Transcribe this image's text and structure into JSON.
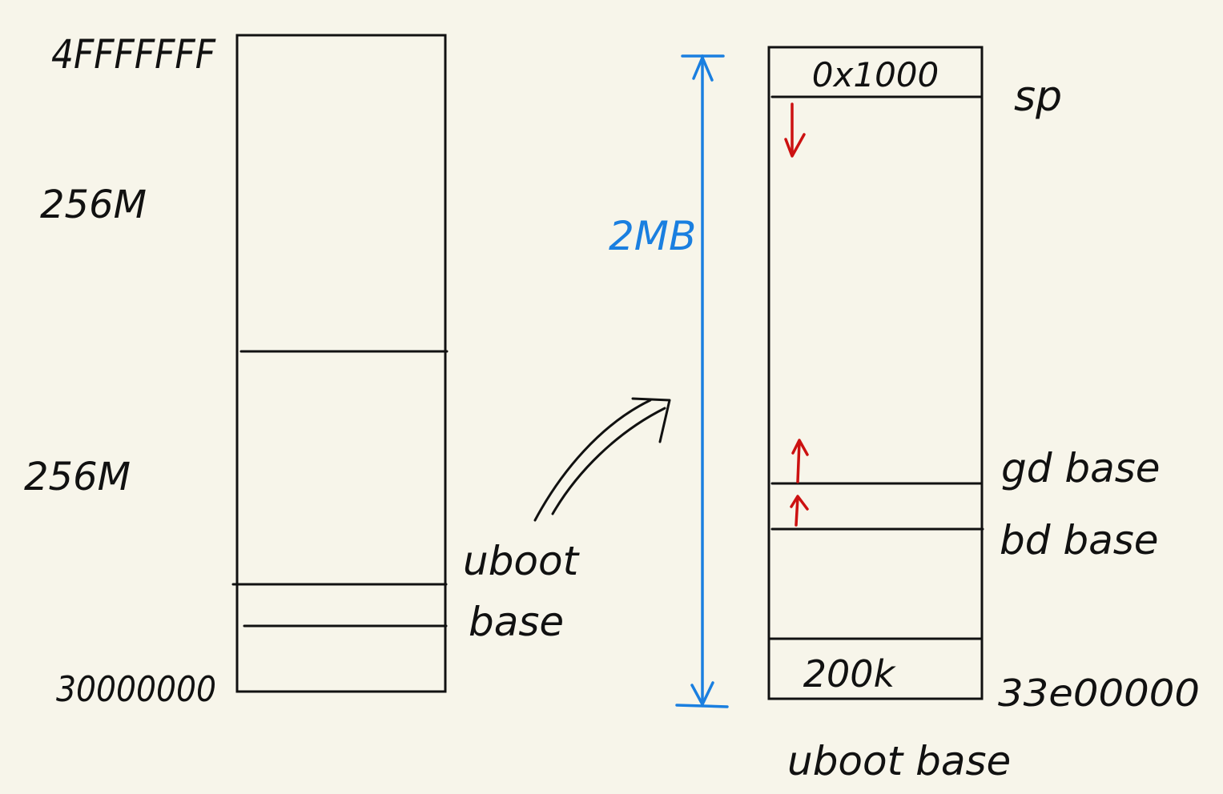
{
  "colors": {
    "background": "#f7f5ea",
    "ink": "#111111",
    "accent_blue": "#1a7fe0",
    "accent_red": "#cc1111"
  },
  "left_memory": {
    "top_address": "4FFFFFFF",
    "bottom_address": "30000000",
    "upper_region_size": "256M",
    "lower_region_size": "256M",
    "uboot_label_line1": "uboot",
    "uboot_label_line2": "base"
  },
  "right_memory": {
    "top_cell": "0x1000",
    "sp_label": "sp",
    "gd_label": "gd base",
    "bd_label": "bd base",
    "bottom_cell": "200k",
    "bottom_address": "33e00000",
    "footer": "uboot base",
    "span_label": "2MB"
  },
  "icons": {
    "zoom_arrow": "curved-arrow-icon",
    "stack_growth": "down-arrow-icon",
    "heap_growth": "up-arrow-icon",
    "span_arrow": "double-headed-arrow-icon"
  }
}
